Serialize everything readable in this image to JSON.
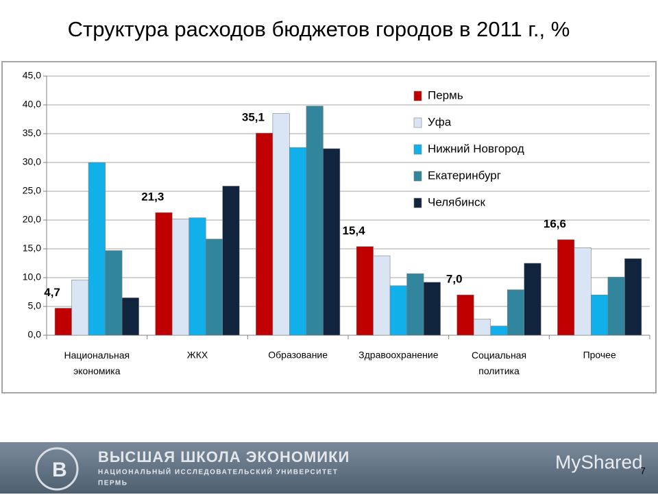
{
  "chart_data": {
    "type": "bar",
    "title": "Структура расходов бюджетов городов в 2011 г., %",
    "categories": [
      "Национальная экономика",
      "ЖКХ",
      "Образование",
      "Здравоохранение",
      "Социальная политика",
      "Прочее"
    ],
    "series": [
      {
        "name": "Пермь",
        "color": "#c00000",
        "values": [
          4.7,
          21.3,
          35.1,
          15.4,
          7.0,
          16.6
        ],
        "value_labels": [
          "4,7",
          "21,3",
          "35,1",
          "15,4",
          "7,0",
          "16,6"
        ]
      },
      {
        "name": "Уфа",
        "color": "#d9e4f5",
        "values": [
          9.6,
          20.2,
          38.5,
          13.8,
          2.8,
          15.2
        ]
      },
      {
        "name": "Нижний Новгород",
        "color": "#12b0eb",
        "values": [
          30.0,
          20.4,
          32.6,
          8.6,
          1.6,
          7.0
        ]
      },
      {
        "name": "Екатеринбург",
        "color": "#31859c",
        "values": [
          14.7,
          16.7,
          39.8,
          10.7,
          7.9,
          10.1
        ]
      },
      {
        "name": "Челябинск",
        "color": "#10243e",
        "values": [
          6.5,
          25.9,
          32.4,
          9.2,
          12.5,
          13.3
        ]
      }
    ],
    "ylim": [
      0,
      45
    ],
    "yticks": [
      {
        "value": 0,
        "label": "0,0"
      },
      {
        "value": 5,
        "label": "5,0"
      },
      {
        "value": 10,
        "label": "10,0"
      },
      {
        "value": 15,
        "label": "15,0"
      },
      {
        "value": 20,
        "label": "20,0"
      },
      {
        "value": 25,
        "label": "25,0"
      },
      {
        "value": 30,
        "label": "30,0"
      },
      {
        "value": 35,
        "label": "35,0"
      },
      {
        "value": 40,
        "label": "40,0"
      },
      {
        "value": 45,
        "label": "45,0"
      }
    ],
    "grid": true,
    "legend": "top-right"
  },
  "footer": {
    "name": "ВЫСШАЯ ШКОЛА ЭКОНОМИКИ",
    "subtitle": "НАЦИОНАЛЬНЫЙ ИССЛЕДОВАТЕЛЬСКИЙ УНИВЕРСИТЕТ",
    "city": "ПЕРМЬ",
    "watermark": "MyShared"
  },
  "page_number": 7
}
